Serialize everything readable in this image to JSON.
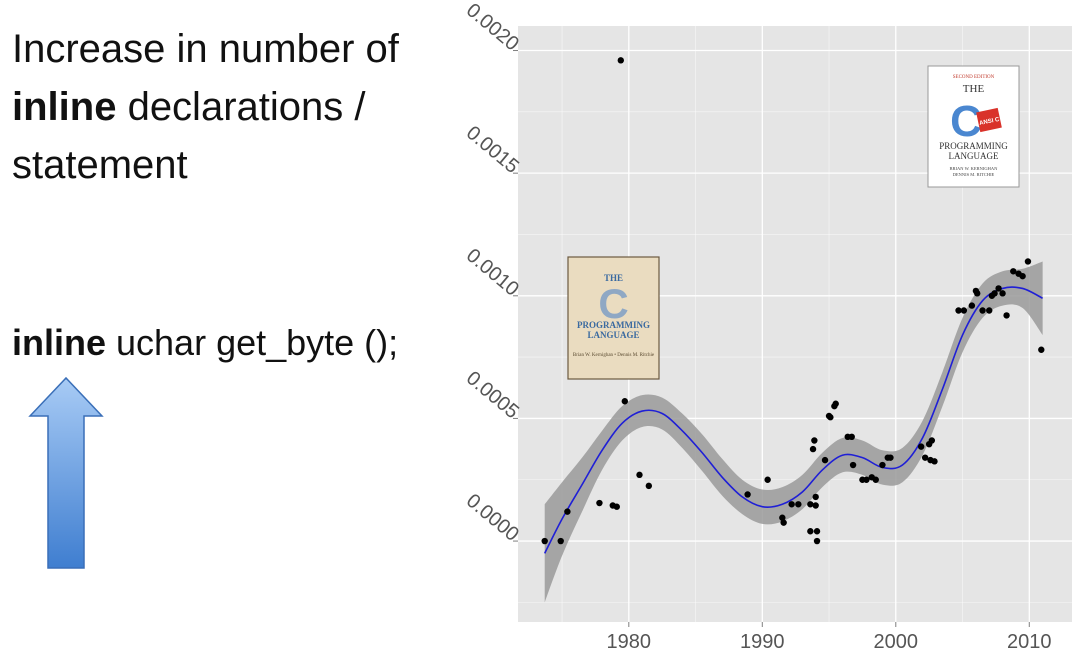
{
  "slide": {
    "title_prefix": "Increase in number of ",
    "title_bold": "inline",
    "title_suffix": " declarations / statement",
    "code_bold": "inline",
    "code_rest": " uchar get_byte ();"
  },
  "colors": {
    "panel_bg": "#e5e5e5",
    "grid": "#ffffff",
    "smooth_line": "#1f1fd6",
    "ribbon": "#9a9a9a",
    "points": "#000000",
    "arrow_top": "#a8cbf5",
    "arrow_bottom": "#3f7ed0"
  },
  "book_first_edition": {
    "title_top": "THE",
    "letter": "C",
    "title_line1": "PROGRAMMING",
    "title_line2": "LANGUAGE",
    "authors": "Brian W. Kernighan • Dennis M. Ritchie"
  },
  "book_second_edition": {
    "edition": "SECOND EDITION",
    "title_top": "THE",
    "letter": "C",
    "badge": "ANSI C",
    "title_line1": "PROGRAMMING",
    "title_line2": "LANGUAGE",
    "authors_line1": "BRIAN W. KERNIGHAN",
    "authors_line2": "DENNIS M. RITCHIE"
  },
  "chart_data": {
    "type": "scatter",
    "title": "",
    "xlabel": "",
    "ylabel": "",
    "xlim": [
      1971.7,
      2013.2
    ],
    "ylim": [
      -0.00033,
      0.0021
    ],
    "x_ticks": [
      1980,
      1990,
      2000,
      2010
    ],
    "y_ticks": [
      0.0,
      0.0005,
      0.001,
      0.0015,
      0.002
    ],
    "y_tick_labels": [
      "0.0000",
      "0.0005",
      "0.0010",
      "0.0015",
      "0.0020"
    ],
    "grid": true,
    "points": [
      [
        1973.7,
        0.0
      ],
      [
        1974.9,
        0.0
      ],
      [
        1975.4,
        0.00012
      ],
      [
        1977.8,
        0.000155
      ],
      [
        1978.8,
        0.000145
      ],
      [
        1979.1,
        0.00014
      ],
      [
        1979.4,
        0.00196
      ],
      [
        1979.7,
        0.00057
      ],
      [
        1980.8,
        0.00027
      ],
      [
        1981.5,
        0.000225
      ],
      [
        1988.9,
        0.00019
      ],
      [
        1990.4,
        0.00025
      ],
      [
        1991.5,
        9.5e-05
      ],
      [
        1991.6,
        7.5e-05
      ],
      [
        1992.2,
        0.00015
      ],
      [
        1992.7,
        0.00015
      ],
      [
        1993.6,
        0.00015
      ],
      [
        1993.6,
        4e-05
      ],
      [
        1993.8,
        0.000375
      ],
      [
        1993.9,
        0.00041
      ],
      [
        1994.0,
        0.00018
      ],
      [
        1994.0,
        0.000145
      ],
      [
        1994.1,
        0.0
      ],
      [
        1994.1,
        4e-05
      ],
      [
        1994.7,
        0.00033
      ],
      [
        1995.0,
        0.00051
      ],
      [
        1995.1,
        0.000505
      ],
      [
        1995.4,
        0.00055
      ],
      [
        1995.5,
        0.00056
      ],
      [
        1996.4,
        0.000425
      ],
      [
        1996.7,
        0.000425
      ],
      [
        1996.8,
        0.00031
      ],
      [
        1997.5,
        0.00025
      ],
      [
        1997.8,
        0.00025
      ],
      [
        1998.2,
        0.00026
      ],
      [
        1998.5,
        0.00025
      ],
      [
        1999.0,
        0.00031
      ],
      [
        1999.4,
        0.00034
      ],
      [
        1999.6,
        0.00034
      ],
      [
        2001.9,
        0.000385
      ],
      [
        2002.2,
        0.00034
      ],
      [
        2002.5,
        0.000395
      ],
      [
        2002.6,
        0.00033
      ],
      [
        2002.7,
        0.00041
      ],
      [
        2002.9,
        0.000325
      ],
      [
        2004.7,
        0.00094
      ],
      [
        2005.1,
        0.00094
      ],
      [
        2005.7,
        0.00096
      ],
      [
        2006.0,
        0.00102
      ],
      [
        2006.1,
        0.00101
      ],
      [
        2006.5,
        0.00094
      ],
      [
        2007.0,
        0.00094
      ],
      [
        2007.2,
        0.001
      ],
      [
        2007.4,
        0.00101
      ],
      [
        2007.7,
        0.00103
      ],
      [
        2008.0,
        0.00101
      ],
      [
        2008.3,
        0.00092
      ],
      [
        2008.8,
        0.0011
      ],
      [
        2009.2,
        0.00109
      ],
      [
        2009.5,
        0.00108
      ],
      [
        2009.9,
        0.00114
      ],
      [
        2010.9,
        0.00078
      ]
    ],
    "smooth": [
      [
        1973.7,
        -5e-05
      ],
      [
        1975.0,
        9e-05
      ],
      [
        1976.5,
        0.00023
      ],
      [
        1978.0,
        0.00037
      ],
      [
        1979.5,
        0.00048
      ],
      [
        1981.0,
        0.00053
      ],
      [
        1982.5,
        0.00052
      ],
      [
        1984.0,
        0.00045
      ],
      [
        1985.5,
        0.00036
      ],
      [
        1987.0,
        0.00026
      ],
      [
        1988.5,
        0.00018
      ],
      [
        1990.0,
        0.00014
      ],
      [
        1991.5,
        0.00015
      ],
      [
        1993.0,
        0.0002
      ],
      [
        1994.5,
        0.00029
      ],
      [
        1996.0,
        0.00035
      ],
      [
        1997.5,
        0.00034
      ],
      [
        1999.0,
        0.0003
      ],
      [
        2000.5,
        0.00031
      ],
      [
        2002.0,
        0.00042
      ],
      [
        2003.5,
        0.00062
      ],
      [
        2005.0,
        0.00084
      ],
      [
        2006.5,
        0.00098
      ],
      [
        2008.0,
        0.00103
      ],
      [
        2009.5,
        0.00103
      ],
      [
        2011.0,
        0.00099
      ]
    ],
    "ribbon_halfwidth": [
      0.0002,
      0.00015,
      0.00011,
      8e-05,
      7e-05,
      6.5e-05,
      6.5e-05,
      7e-05,
      7.5e-05,
      7.5e-05,
      7e-05,
      7e-05,
      7e-05,
      7e-05,
      7e-05,
      7e-05,
      7e-05,
      7e-05,
      7e-05,
      7e-05,
      7e-05,
      7e-05,
      7e-05,
      7e-05,
      8e-05,
      0.00015
    ]
  }
}
